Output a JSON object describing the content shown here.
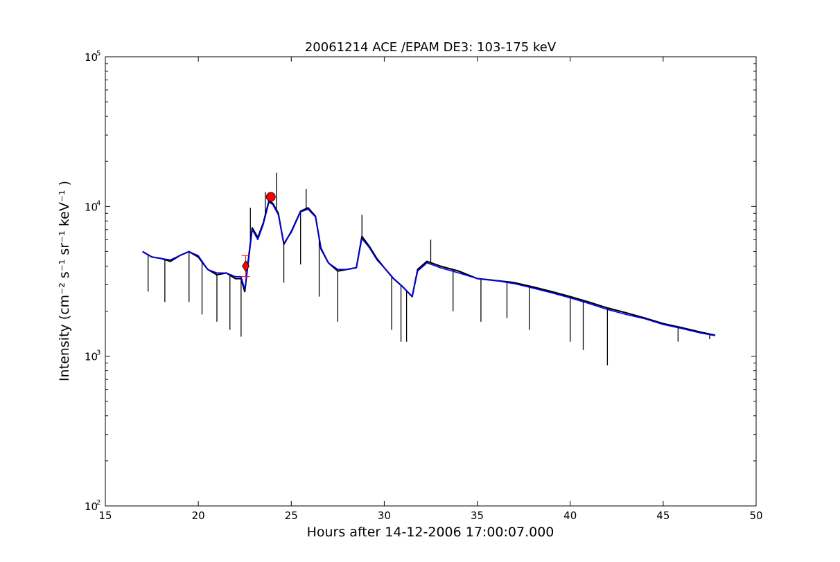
{
  "chart_data": {
    "type": "line",
    "title": "20061214 ACE /EPAM DE3: 103-175 keV",
    "xlabel": "Hours after 14-12-2006 17:00:07.000",
    "ylabel": "Intensity (cm⁻² s⁻¹ sr⁻¹ keV⁻¹ )",
    "xlim": [
      15,
      50
    ],
    "ylim": [
      100,
      100000
    ],
    "yscale": "log",
    "grid": false,
    "x_ticks": [
      15,
      20,
      25,
      30,
      35,
      40,
      45,
      50
    ],
    "y_ticks": [
      {
        "value": 100,
        "base": "10",
        "exp": "2"
      },
      {
        "value": 1000,
        "base": "10",
        "exp": "3"
      },
      {
        "value": 10000,
        "base": "10",
        "exp": "4"
      },
      {
        "value": 100000,
        "base": "10",
        "exp": "5"
      }
    ],
    "series": [
      {
        "role": "raw",
        "color": "#000000",
        "x": [
          17.0,
          17.5,
          18.0,
          18.5,
          19.0,
          19.5,
          20.0,
          20.5,
          21.0,
          21.5,
          22.0,
          22.3,
          22.5,
          22.7,
          22.9,
          23.2,
          23.5,
          23.8,
          24.0,
          24.3,
          24.6,
          25.0,
          25.5,
          25.9,
          26.3,
          26.6,
          27.0,
          27.5,
          28.0,
          28.5,
          28.8,
          29.2,
          29.6,
          30.0,
          30.5,
          31.0,
          31.5,
          31.8,
          32.3,
          33.0,
          34.0,
          35.0,
          36.0,
          37.0,
          38.0,
          39.0,
          40.0,
          41.0,
          42.0,
          43.0,
          44.0,
          45.0,
          46.0,
          47.0,
          47.8
        ],
        "y": [
          5000,
          4600,
          4500,
          4300,
          4700,
          5000,
          4600,
          3800,
          3500,
          3600,
          3300,
          3300,
          2700,
          4500,
          7200,
          6200,
          7800,
          10900,
          10500,
          9000,
          5600,
          6800,
          9300,
          9800,
          8600,
          5200,
          4200,
          3700,
          3800,
          3900,
          6300,
          5400,
          4500,
          3900,
          3300,
          2900,
          2500,
          3800,
          4300,
          4000,
          3700,
          3300,
          3200,
          3100,
          2900,
          2700,
          2500,
          2300,
          2100,
          1950,
          1800,
          1650,
          1550,
          1450,
          1380
        ],
        "spikes": [
          {
            "x": 17.3,
            "y": 2700
          },
          {
            "x": 18.2,
            "y": 2300
          },
          {
            "x": 19.5,
            "y": 2300
          },
          {
            "x": 20.2,
            "y": 1900
          },
          {
            "x": 21.0,
            "y": 1700
          },
          {
            "x": 21.7,
            "y": 1500
          },
          {
            "x": 22.3,
            "y": 1350
          },
          {
            "x": 22.8,
            "y": 9800
          },
          {
            "x": 23.6,
            "y": 12500
          },
          {
            "x": 24.2,
            "y": 16800
          },
          {
            "x": 24.6,
            "y": 3100
          },
          {
            "x": 25.5,
            "y": 4100
          },
          {
            "x": 25.8,
            "y": 13100
          },
          {
            "x": 26.5,
            "y": 2500
          },
          {
            "x": 27.5,
            "y": 1700
          },
          {
            "x": 28.8,
            "y": 8800
          },
          {
            "x": 30.4,
            "y": 1500
          },
          {
            "x": 30.9,
            "y": 1250
          },
          {
            "x": 31.2,
            "y": 1250
          },
          {
            "x": 32.5,
            "y": 6000
          },
          {
            "x": 33.7,
            "y": 2000
          },
          {
            "x": 35.2,
            "y": 1700
          },
          {
            "x": 36.6,
            "y": 1800
          },
          {
            "x": 37.8,
            "y": 1500
          },
          {
            "x": 40.0,
            "y": 1250
          },
          {
            "x": 40.7,
            "y": 1100
          },
          {
            "x": 42.0,
            "y": 870
          },
          {
            "x": 45.8,
            "y": 1250
          },
          {
            "x": 47.5,
            "y": 1300
          }
        ]
      },
      {
        "role": "smoothed",
        "color": "#0000ff",
        "x": [
          17.0,
          17.5,
          18.0,
          18.5,
          19.0,
          19.5,
          20.0,
          20.5,
          21.0,
          21.5,
          22.0,
          22.3,
          22.5,
          22.7,
          22.9,
          23.2,
          23.5,
          23.8,
          24.0,
          24.3,
          24.6,
          25.0,
          25.5,
          25.9,
          26.3,
          26.6,
          27.0,
          27.5,
          28.0,
          28.5,
          28.8,
          29.2,
          29.6,
          30.0,
          30.5,
          31.0,
          31.5,
          31.8,
          32.3,
          33.0,
          34.0,
          35.0,
          36.0,
          37.0,
          38.0,
          39.0,
          40.0,
          41.0,
          42.0,
          43.0,
          44.0,
          45.0,
          46.0,
          47.0,
          47.8
        ],
        "y": [
          5000,
          4600,
          4500,
          4400,
          4700,
          5000,
          4700,
          3800,
          3600,
          3600,
          3400,
          3400,
          2800,
          4300,
          7000,
          6000,
          7600,
          10700,
          10300,
          8800,
          5700,
          6700,
          9200,
          9600,
          8500,
          5300,
          4200,
          3800,
          3800,
          3900,
          6100,
          5300,
          4400,
          3900,
          3300,
          2900,
          2500,
          3700,
          4200,
          3900,
          3600,
          3300,
          3200,
          3050,
          2850,
          2650,
          2450,
          2250,
          2050,
          1900,
          1780,
          1630,
          1530,
          1430,
          1370
        ]
      }
    ],
    "markers": [
      {
        "shape": "circle",
        "color": "#ff0000",
        "x": 23.9,
        "y": 11600
      },
      {
        "shape": "diamond",
        "color": "#ff0000",
        "x": 22.55,
        "y": 4000,
        "error_low": 3400,
        "error_high": 4700
      }
    ]
  }
}
